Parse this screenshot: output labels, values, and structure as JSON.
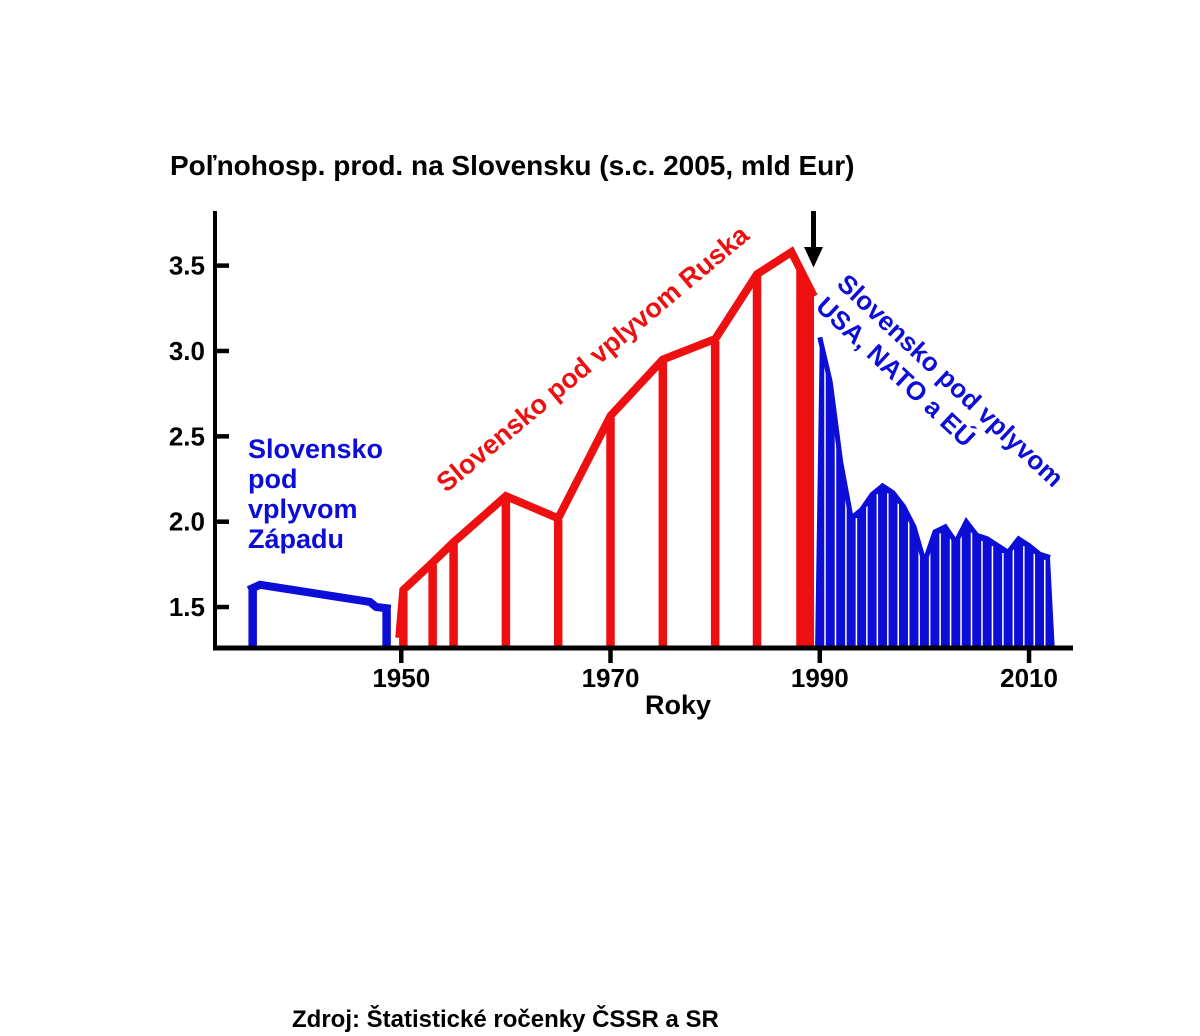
{
  "source": "Zdroj: Štatistické ročenky ČSSR a SR",
  "colors": {
    "red": "#ee1010",
    "blue": "#0d0dd8",
    "axis": "#000000",
    "background": "#ffffff"
  },
  "annotations": {
    "west": {
      "lines": [
        "Slovensko",
        "pod",
        "vplyvom",
        "Západu"
      ]
    },
    "russia": {
      "text": "Slovensko pod vplyvom Ruska"
    },
    "usa": {
      "lines": [
        "Slovensko pod vplyvom",
        "USA, NATO a EÚ"
      ]
    }
  },
  "chart_data": {
    "type": "area",
    "title": "Poľnohosp. prod. na Slovensku (s.c. 2005, mld Eur)",
    "xlabel": "Roky",
    "ylabel": "",
    "grid": false,
    "x_ticks": [
      1950,
      1970,
      1990,
      2010
    ],
    "y_ticks": [
      3.5,
      3.0,
      2.5,
      2.0,
      1.5
    ],
    "x_range": [
      1932.2,
      2014.2
    ],
    "y_range": [
      1.26,
      3.82
    ],
    "arrow_year": 1989.4,
    "series": [
      {
        "name": "Slovensko pod vplyvom Západu",
        "color": "blue",
        "style": "outline-with-drop-lines",
        "points": [
          [
            1935.4,
            1.6
          ],
          [
            1936.5,
            1.63
          ],
          [
            1947.0,
            1.53
          ],
          [
            1947.6,
            1.5
          ],
          [
            1949.0,
            1.49
          ]
        ],
        "drop_years": [
          1935.8,
          1948.6
        ]
      },
      {
        "name": "Slovensko pod vplyvom Ruska",
        "color": "red",
        "style": "outline-with-drop-lines",
        "points": [
          [
            1949.8,
            1.32
          ],
          [
            1950.2,
            1.6
          ],
          [
            1953,
            1.76
          ],
          [
            1955,
            1.88
          ],
          [
            1960,
            2.15
          ],
          [
            1965,
            2.02
          ],
          [
            1970,
            2.62
          ],
          [
            1975,
            2.95
          ],
          [
            1980,
            3.07
          ],
          [
            1984,
            3.45
          ],
          [
            1987.3,
            3.58
          ],
          [
            1989.45,
            3.32
          ]
        ],
        "drop_years": [
          1950.2,
          1953,
          1955,
          1960,
          1965,
          1970,
          1975,
          1980,
          1984
        ],
        "end_bar": {
          "from": 1987.75,
          "to": 1989.45
        }
      },
      {
        "name": "Slovensko pod vplyvom USA, NATO a EÚ",
        "color": "blue",
        "style": "solid-annual-bars",
        "years": [
          1990,
          1991,
          1992,
          1993,
          1994,
          1995,
          1996,
          1997,
          1998,
          1999,
          2000,
          2001,
          2002,
          2003,
          2004,
          2005,
          2006,
          2007,
          2008,
          2009,
          2010,
          2011,
          2012
        ],
        "values": [
          3.08,
          2.82,
          2.35,
          2.02,
          2.07,
          2.16,
          2.21,
          2.17,
          2.09,
          1.97,
          1.76,
          1.94,
          1.97,
          1.88,
          2.0,
          1.92,
          1.9,
          1.86,
          1.82,
          1.9,
          1.86,
          1.81,
          1.79
        ]
      }
    ]
  }
}
